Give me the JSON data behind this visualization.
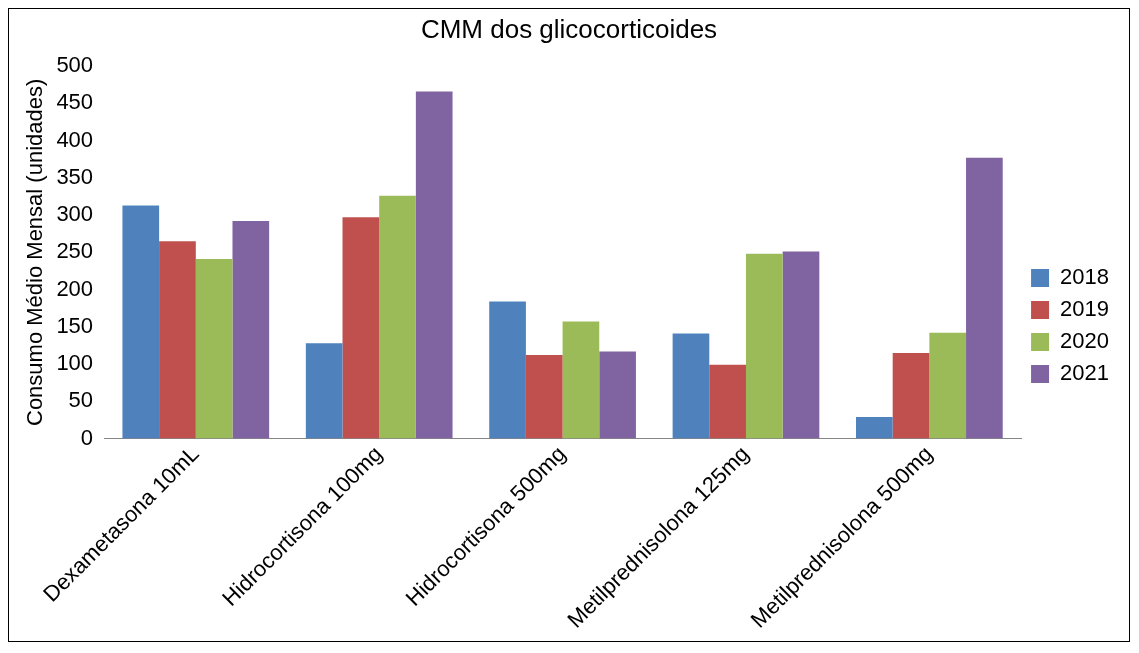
{
  "chart_data": {
    "type": "bar",
    "title": "CMM dos glicocorticoides",
    "ylabel": "Consumo Médio Mensal (unidades)",
    "categories": [
      "Dexametasona 10mL",
      "Hidrocortisona 100mg",
      "Hidrocortisona 500mg",
      "Metilprednisolona 125mg",
      "Metilprednisolona 500mg"
    ],
    "series": [
      {
        "name": "2018",
        "color": "#4f81bd",
        "values": [
          313,
          128,
          184,
          141,
          29
        ]
      },
      {
        "name": "2019",
        "color": "#c0504d",
        "values": [
          265,
          297,
          112,
          99,
          115
        ]
      },
      {
        "name": "2020",
        "color": "#9bbb59",
        "values": [
          241,
          326,
          157,
          248,
          142
        ]
      },
      {
        "name": "2021",
        "color": "#8064a2",
        "values": [
          292,
          466,
          117,
          251,
          377
        ]
      }
    ],
    "ylim": [
      0,
      500
    ],
    "yticks": [
      0,
      50,
      100,
      150,
      200,
      250,
      300,
      350,
      400,
      450,
      500
    ],
    "grid": false,
    "legend": "right"
  }
}
